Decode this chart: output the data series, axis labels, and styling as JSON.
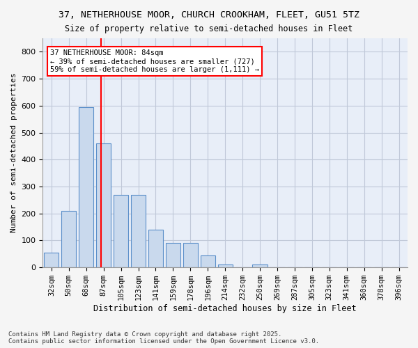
{
  "title1": "37, NETHERHOUSE MOOR, CHURCH CROOKHAM, FLEET, GU51 5TZ",
  "title2": "Size of property relative to semi-detached houses in Fleet",
  "xlabel": "Distribution of semi-detached houses by size in Fleet",
  "ylabel": "Number of semi-detached properties",
  "categories": [
    "32sqm",
    "50sqm",
    "68sqm",
    "87sqm",
    "105sqm",
    "123sqm",
    "141sqm",
    "159sqm",
    "178sqm",
    "196sqm",
    "214sqm",
    "232sqm",
    "250sqm",
    "269sqm",
    "287sqm",
    "305sqm",
    "323sqm",
    "341sqm",
    "360sqm",
    "378sqm",
    "396sqm"
  ],
  "values": [
    55,
    210,
    595,
    460,
    270,
    270,
    140,
    90,
    90,
    45,
    10,
    0,
    10,
    0,
    0,
    0,
    0,
    0,
    0,
    0,
    0
  ],
  "bar_color": "#c9d9ed",
  "bar_edge_color": "#5b8fc9",
  "ref_line_x": 2,
  "ref_line_color": "red",
  "annotation_text": "37 NETHERHOUSE MOOR: 84sqm\n← 39% of semi-detached houses are smaller (727)\n59% of semi-detached houses are larger (1,111) →",
  "annotation_box_color": "red",
  "ylim": [
    0,
    850
  ],
  "yticks": [
    0,
    100,
    200,
    300,
    400,
    500,
    600,
    700,
    800
  ],
  "grid_color": "#c0c8d8",
  "background_color": "#e8eef8",
  "footnote": "Contains HM Land Registry data © Crown copyright and database right 2025.\nContains public sector information licensed under the Open Government Licence v3.0."
}
